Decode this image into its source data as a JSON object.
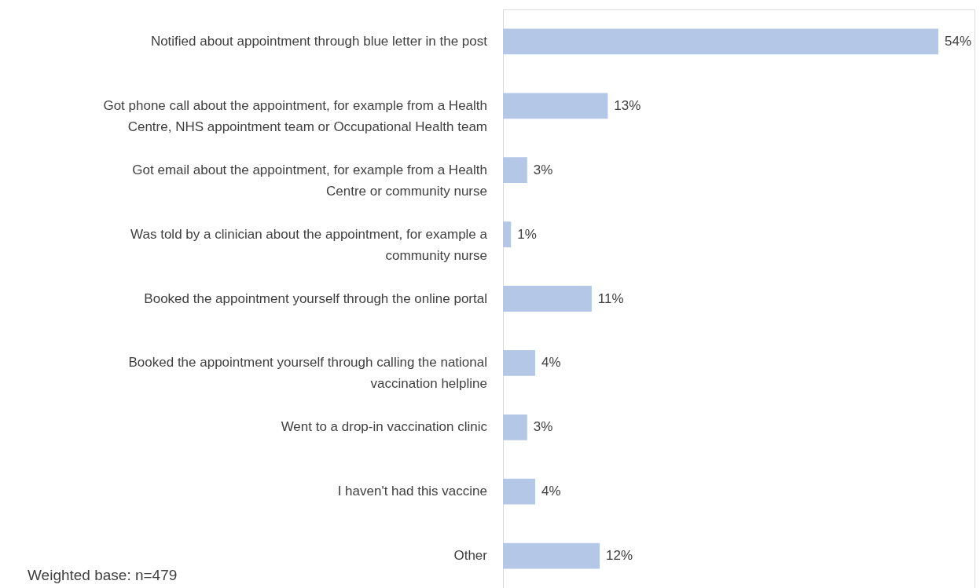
{
  "chart_data": {
    "type": "bar",
    "orientation": "horizontal",
    "categories": [
      "Notified about appointment through blue letter in the post",
      "Got phone call about the appointment, for example from a Health Centre, NHS appointment team or Occupational Health team",
      "Got email about the appointment, for example from a Health Centre or community nurse",
      "Was told by a clinician about the appointment, for example a community nurse",
      "Booked the appointment yourself through the online portal",
      "Booked the appointment yourself through calling the national vaccination helpline",
      "Went to a drop-in vaccination clinic",
      "I haven't had this vaccine",
      "Other"
    ],
    "values": [
      54,
      13,
      3,
      1,
      11,
      4,
      3,
      4,
      12
    ],
    "value_labels": [
      "54%",
      "13%",
      "3%",
      "1%",
      "11%",
      "4%",
      "3%",
      "4%",
      "12%"
    ],
    "color": "#b4c7e7",
    "annotations": [
      "Weighted base: n=479"
    ],
    "grid": false
  }
}
